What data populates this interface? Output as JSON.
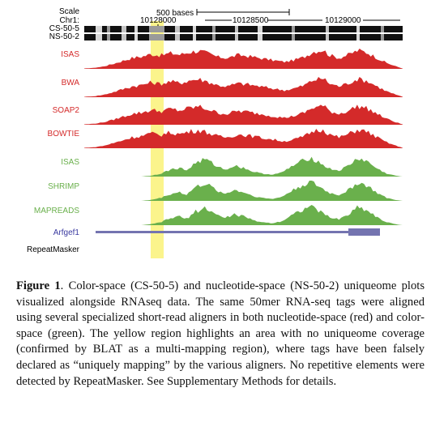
{
  "ruler": {
    "scale_label": "Scale",
    "chrom_label": "Chr1:",
    "scale_bar_text": "500 bases",
    "positions": [
      "10128000",
      "10128500",
      "10129000"
    ]
  },
  "tracks": {
    "uniqueome": [
      "CS-50-5",
      "NS-50-2"
    ],
    "aligners": [
      {
        "label": "ISAS",
        "space": "nucleotide",
        "color": "#d42a2a"
      },
      {
        "label": "BWA",
        "space": "nucleotide",
        "color": "#d42a2a"
      },
      {
        "label": "SOAP2",
        "space": "nucleotide",
        "color": "#d42a2a"
      },
      {
        "label": "BOWTIE",
        "space": "nucleotide",
        "color": "#d42a2a"
      },
      {
        "label": "ISAS",
        "space": "color",
        "color": "#6ab04c"
      },
      {
        "label": "SHRIMP",
        "space": "color",
        "color": "#6ab04c"
      },
      {
        "label": "MAPREADS",
        "space": "color",
        "color": "#6ab04c"
      }
    ],
    "gene": {
      "label": "Arfgef1",
      "color": "#3a3aa0",
      "bar_color": "#7474b0"
    },
    "repeatmasker": {
      "label": "RepeatMasker"
    }
  },
  "colors": {
    "highlight": "#fbf48c",
    "red_track": "#d42a2a",
    "green_track": "#6ab04c"
  },
  "caption": {
    "figure_label": "Figure 1",
    "text": ". Color-space (CS-50-5) and nucleotide-space (NS-50-2) uniqueome plots visualized alongside RNAseq data. The same 50mer RNA-seq tags were aligned using several specialized short-read aligners in both nucleotide-space (red) and color-space (green). The yellow region highlights an area with no uniqueome coverage (confirmed by BLAT as a multi-mapping region), where tags have been falsely declared as “uniquely mapping” by the various aligners. No repetitive elements were detected by RepeatMasker. See Supplementary Methods for details."
  }
}
